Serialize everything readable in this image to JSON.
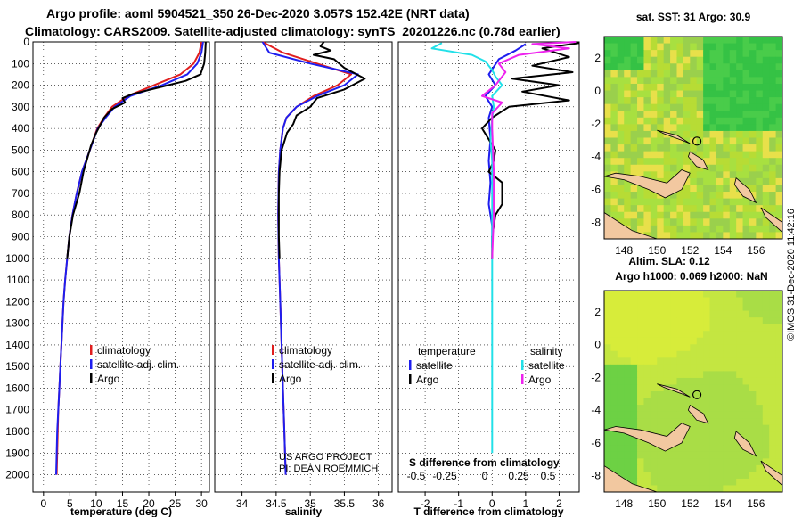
{
  "header": {
    "line1": "Argo profile: aoml 5904521_350 26-Dec-2020 3.057S 152.42E (NRT data)",
    "line2": "Climatology: CARS2009. Satellite-adjusted climatology: synTS_20201226.nc (0.78d earlier)"
  },
  "colors": {
    "argo": "#000000",
    "climatology": "#e01e1e",
    "satellite": "#1e1eef",
    "cyan": "#22e0e8",
    "magenta": "#ee22ee",
    "land": "#f2c8a0"
  },
  "chart_data": [
    {
      "type": "line",
      "panel": "temperature",
      "xlabel": "temperature (deg C)",
      "xlim": [
        -2,
        31.5
      ],
      "xticks": [
        0,
        5,
        10,
        15,
        20,
        25,
        30
      ],
      "ylim": [
        2080,
        0
      ],
      "yticks": [
        0,
        100,
        200,
        300,
        400,
        500,
        600,
        700,
        800,
        900,
        1000,
        1100,
        1200,
        1300,
        1400,
        1500,
        1600,
        1700,
        1800,
        1900,
        2000
      ],
      "legend": [
        "climatology",
        "satellite-adj. clim.",
        "Argo"
      ],
      "series": [
        {
          "name": "climatology",
          "color": "red",
          "points": [
            [
              30,
              0
            ],
            [
              29.6,
              50
            ],
            [
              28.5,
              100
            ],
            [
              26,
              150
            ],
            [
              21,
              200
            ],
            [
              16,
              250
            ],
            [
              13,
              300
            ],
            [
              11.5,
              350
            ],
            [
              10.2,
              400
            ],
            [
              8.8,
              500
            ],
            [
              7.3,
              600
            ],
            [
              6.3,
              700
            ],
            [
              5.5,
              800
            ],
            [
              4.9,
              900
            ],
            [
              4.5,
              1000
            ],
            [
              4.1,
              1100
            ],
            [
              3.8,
              1200
            ],
            [
              3.6,
              1300
            ],
            [
              3.4,
              1400
            ],
            [
              3.2,
              1500
            ],
            [
              3.0,
              1600
            ],
            [
              2.8,
              1700
            ],
            [
              2.7,
              1800
            ],
            [
              2.6,
              1900
            ],
            [
              2.5,
              2000
            ]
          ]
        },
        {
          "name": "satellite-adj. clim.",
          "color": "blue",
          "points": [
            [
              30.3,
              0
            ],
            [
              30,
              50
            ],
            [
              29.2,
              100
            ],
            [
              27.3,
              150
            ],
            [
              22.5,
              200
            ],
            [
              16.5,
              250
            ],
            [
              13.5,
              300
            ],
            [
              11.8,
              350
            ],
            [
              10.3,
              400
            ],
            [
              8.8,
              500
            ],
            [
              7.3,
              600
            ],
            [
              6.3,
              700
            ],
            [
              5.5,
              800
            ],
            [
              4.9,
              900
            ],
            [
              4.5,
              1000
            ],
            [
              4.1,
              1100
            ],
            [
              3.8,
              1200
            ],
            [
              3.6,
              1300
            ],
            [
              3.4,
              1400
            ],
            [
              3.2,
              1500
            ],
            [
              3.0,
              1600
            ],
            [
              2.8,
              1700
            ],
            [
              2.6,
              1800
            ],
            [
              2.5,
              1900
            ],
            [
              2.4,
              2000
            ]
          ]
        },
        {
          "name": "Argo",
          "color": "black",
          "points": [
            [
              30.8,
              0
            ],
            [
              30.7,
              50
            ],
            [
              30.5,
              100
            ],
            [
              29.8,
              150
            ],
            [
              27,
              180
            ],
            [
              22,
              210
            ],
            [
              17,
              240
            ],
            [
              15,
              260
            ],
            [
              15.5,
              280
            ],
            [
              13,
              310
            ],
            [
              11.5,
              350
            ],
            [
              10,
              420
            ],
            [
              9,
              480
            ],
            [
              7.6,
              600
            ],
            [
              6.8,
              700
            ],
            [
              5.6,
              800
            ],
            [
              4.9,
              900
            ],
            [
              4.5,
              1000
            ]
          ]
        }
      ]
    },
    {
      "type": "line",
      "panel": "salinity",
      "xlabel": "salinity",
      "xlim": [
        33.6,
        36.2
      ],
      "xticks": [
        34,
        34.5,
        35,
        35.5,
        36
      ],
      "ylim": [
        2080,
        0
      ],
      "legend": [
        "climatology",
        "satellite-adj. clim.",
        "Argo"
      ],
      "annotations": [
        "US ARGO PROJECT",
        "PI: DEAN ROEMMICH"
      ],
      "series": [
        {
          "name": "climatology",
          "color": "red",
          "points": [
            [
              34.3,
              0
            ],
            [
              34.6,
              50
            ],
            [
              35.1,
              100
            ],
            [
              35.6,
              150
            ],
            [
              35.4,
              200
            ],
            [
              35.05,
              250
            ],
            [
              34.8,
              300
            ],
            [
              34.65,
              350
            ],
            [
              34.6,
              400
            ],
            [
              34.56,
              500
            ],
            [
              34.54,
              600
            ],
            [
              34.53,
              800
            ],
            [
              34.54,
              1000
            ],
            [
              34.56,
              1200
            ],
            [
              34.58,
              1400
            ],
            [
              34.6,
              1600
            ],
            [
              34.62,
              1800
            ],
            [
              34.64,
              2000
            ]
          ]
        },
        {
          "name": "satellite-adj. clim.",
          "color": "blue",
          "points": [
            [
              34.3,
              0
            ],
            [
              34.4,
              50
            ],
            [
              35,
              100
            ],
            [
              35.7,
              150
            ],
            [
              35.5,
              200
            ],
            [
              35.1,
              250
            ],
            [
              34.8,
              300
            ],
            [
              34.65,
              350
            ],
            [
              34.6,
              400
            ],
            [
              34.56,
              500
            ],
            [
              34.54,
              600
            ],
            [
              34.53,
              800
            ],
            [
              34.54,
              1000
            ],
            [
              34.56,
              1200
            ],
            [
              34.58,
              1400
            ],
            [
              34.6,
              1600
            ],
            [
              34.62,
              1800
            ],
            [
              34.64,
              2000
            ]
          ]
        },
        {
          "name": "Argo",
          "color": "black",
          "points": [
            [
              35.2,
              0
            ],
            [
              35.15,
              20
            ],
            [
              35.3,
              40
            ],
            [
              35.05,
              60
            ],
            [
              35.35,
              80
            ],
            [
              35.5,
              120
            ],
            [
              35.8,
              170
            ],
            [
              35.5,
              220
            ],
            [
              35.1,
              260
            ],
            [
              35,
              300
            ],
            [
              34.8,
              340
            ],
            [
              34.75,
              380
            ],
            [
              34.66,
              420
            ],
            [
              34.62,
              460
            ],
            [
              34.58,
              500
            ],
            [
              34.55,
              600
            ],
            [
              34.54,
              700
            ],
            [
              34.54,
              800
            ],
            [
              34.54,
              900
            ],
            [
              34.55,
              1000
            ]
          ]
        }
      ]
    },
    {
      "type": "line",
      "panel": "difference",
      "xlabel": "T difference from climatology",
      "xlim": [
        -2.8,
        2.6
      ],
      "xticks": [
        -2,
        -1,
        0,
        1,
        2
      ],
      "x2label": "S difference from climatology",
      "x2ticks": [
        "-0.5",
        "-0.25",
        "0",
        "0.25",
        "0.5"
      ],
      "ylim": [
        2080,
        0
      ],
      "legend_left_title": "temperature",
      "legend_right_title": "salinity",
      "legend_left": [
        "satellite",
        "Argo"
      ],
      "legend_right": [
        "satellite",
        "Argo"
      ],
      "series": [
        {
          "name": "T satellite",
          "color": "blue",
          "points": [
            [
              1,
              10
            ],
            [
              0.7,
              40
            ],
            [
              0.2,
              80
            ],
            [
              -0.1,
              150
            ],
            [
              0.1,
              200
            ],
            [
              -0.2,
              250
            ],
            [
              0,
              300
            ],
            [
              -0.1,
              350
            ],
            [
              -0.05,
              450
            ],
            [
              -0.1,
              550
            ],
            [
              -0.05,
              650
            ],
            [
              -0.1,
              750
            ],
            [
              0,
              850
            ],
            [
              0,
              950
            ]
          ]
        },
        {
          "name": "T Argo",
          "color": "black",
          "points": [
            [
              2.6,
              5
            ],
            [
              1.5,
              30
            ],
            [
              2.3,
              70
            ],
            [
              1.2,
              110
            ],
            [
              2.4,
              140
            ],
            [
              0.6,
              170
            ],
            [
              2,
              200
            ],
            [
              0.9,
              230
            ],
            [
              2.3,
              270
            ],
            [
              0.5,
              300
            ],
            [
              0,
              350
            ],
            [
              -0.3,
              400
            ],
            [
              -0.1,
              450
            ],
            [
              0.1,
              500
            ],
            [
              0.05,
              550
            ],
            [
              -0.1,
              600
            ],
            [
              0.3,
              650
            ],
            [
              0.3,
              750
            ],
            [
              0.1,
              800
            ],
            [
              0,
              900
            ],
            [
              0,
              1000
            ]
          ]
        },
        {
          "name": "S satellite",
          "color": "cyan",
          "points": [
            [
              -1.5,
              5
            ],
            [
              -1.8,
              30
            ],
            [
              -0.6,
              60
            ],
            [
              -0.2,
              90
            ],
            [
              0,
              130
            ],
            [
              0.1,
              160
            ],
            [
              0.3,
              200
            ],
            [
              0,
              250
            ],
            [
              0.05,
              300
            ],
            [
              0,
              350
            ],
            [
              -0.05,
              450
            ],
            [
              0,
              550
            ],
            [
              0,
              650
            ],
            [
              0,
              800
            ],
            [
              0,
              1000
            ],
            [
              0,
              1200
            ],
            [
              0,
              1400
            ],
            [
              0,
              1600
            ],
            [
              0,
              1800
            ],
            [
              0,
              1900
            ]
          ]
        },
        {
          "name": "S Argo",
          "color": "magenta",
          "points": [
            [
              2.5,
              0
            ],
            [
              1.2,
              10
            ],
            [
              2.3,
              30
            ],
            [
              0.8,
              60
            ],
            [
              0.2,
              100
            ],
            [
              0.4,
              140
            ],
            [
              0.1,
              200
            ],
            [
              -0.3,
              250
            ],
            [
              0.3,
              280
            ],
            [
              0,
              330
            ],
            [
              0,
              400
            ],
            [
              0.05,
              600
            ],
            [
              0.05,
              800
            ],
            [
              0,
              1000
            ]
          ]
        }
      ]
    },
    {
      "type": "heatmap",
      "panel": "sst-map",
      "title": "sat. SST: 31 Argo: 30.9",
      "xticks": [
        "148",
        "150",
        "152",
        "154",
        "156"
      ],
      "yticks": [
        "2",
        "0",
        "-2",
        "-4",
        "-6",
        "-8"
      ],
      "marker": {
        "lon": 152.42,
        "lat": -3.057
      }
    },
    {
      "type": "heatmap",
      "panel": "sla-map",
      "title": "Altim. SLA: 0.12",
      "subtitle": "Argo h1000: 0.069 h2000: NaN",
      "xticks": [
        "148",
        "150",
        "152",
        "154",
        "156"
      ],
      "yticks": [
        "2",
        "0",
        "-2",
        "-4",
        "-6",
        "-8"
      ],
      "marker": {
        "lon": 152.42,
        "lat": -3.057
      }
    }
  ],
  "stamp": "©IMOS 31-Dec-2020 11:42:16"
}
